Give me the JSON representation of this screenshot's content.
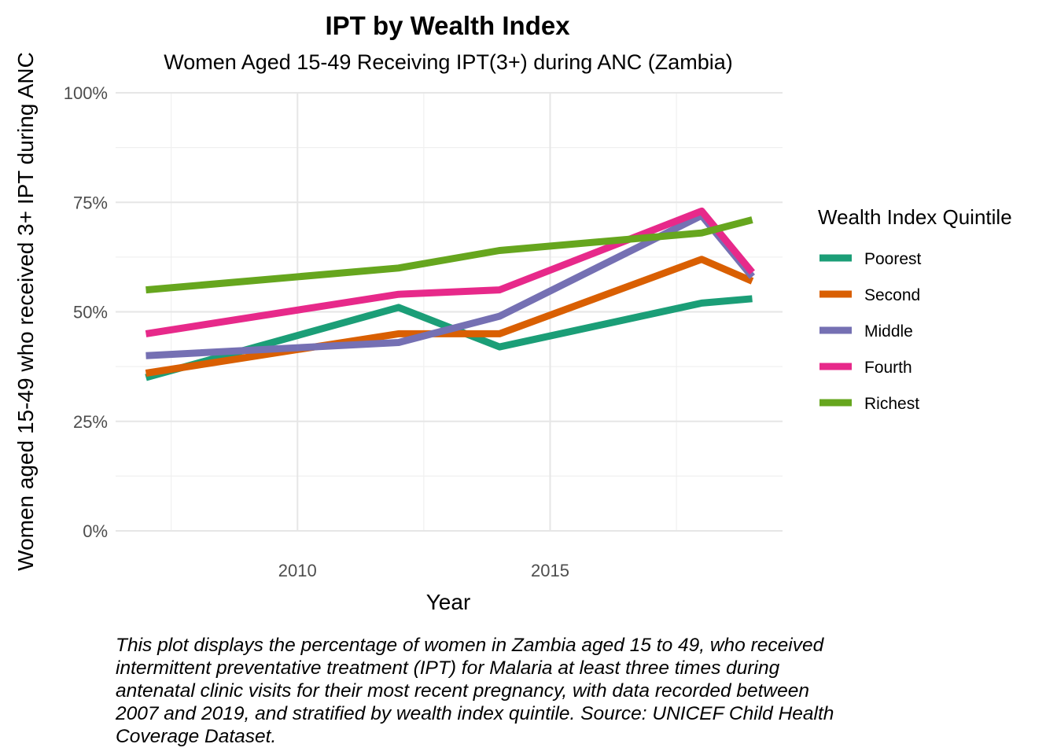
{
  "chart_data": {
    "type": "line",
    "title": "IPT by Wealth Index",
    "subtitle": "Women Aged 15-49 Receiving IPT(3+) during ANC (Zambia)",
    "xlabel": "Year",
    "ylabel": "Women aged 15-49 who received 3+ IPT during ANC",
    "xlim": [
      2006.4,
      2019.6
    ],
    "ylim": [
      0,
      100
    ],
    "x_ticks": [
      2010,
      2015
    ],
    "y_ticks": [
      0,
      25,
      50,
      75,
      100
    ],
    "y_tick_labels": [
      "0%",
      "25%",
      "50%",
      "75%",
      "100%"
    ],
    "grid": true,
    "legend_title": "Wealth Index Quintile",
    "legend_position": "right",
    "x": [
      2007,
      2012,
      2014,
      2018,
      2019
    ],
    "series": [
      {
        "name": "Poorest",
        "color": "#1B9E77",
        "values": [
          35,
          51,
          42,
          52,
          53
        ]
      },
      {
        "name": "Second",
        "color": "#D95F02",
        "values": [
          36,
          45,
          45,
          62,
          57
        ]
      },
      {
        "name": "Middle",
        "color": "#7570B3",
        "values": [
          40,
          43,
          49,
          72,
          58
        ]
      },
      {
        "name": "Fourth",
        "color": "#E7298A",
        "values": [
          45,
          54,
          55,
          73,
          59
        ]
      },
      {
        "name": "Richest",
        "color": "#66A61E",
        "values": [
          55,
          60,
          64,
          68,
          71
        ]
      }
    ]
  },
  "caption": "This plot displays the percentage of women in Zambia aged 15 to 49, who received intermittent preventative treatment (IPT) for Malaria at least three times during antenatal clinic visits for their most recent pregnancy, with data recorded between 2007 and 2019, and stratified by wealth index quintile. Source: UNICEF Child Health Coverage Dataset."
}
